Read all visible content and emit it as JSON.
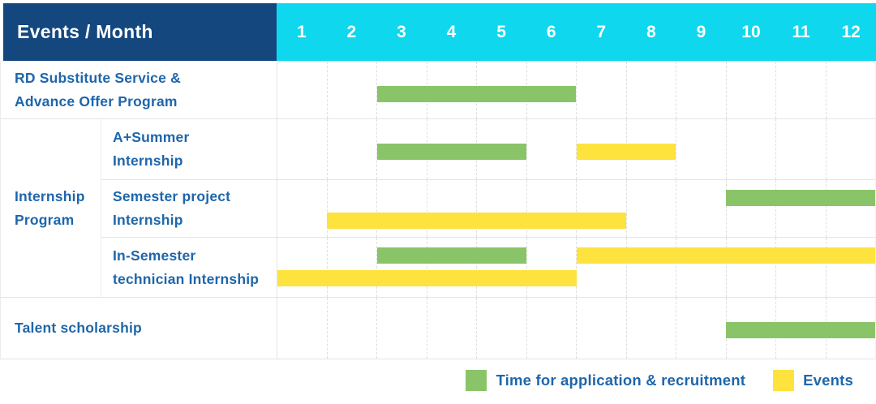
{
  "header": {
    "title": "Events / Month",
    "months": [
      "1",
      "2",
      "3",
      "4",
      "5",
      "6",
      "7",
      "8",
      "9",
      "10",
      "11",
      "12"
    ]
  },
  "group": {
    "label": "Internship Program",
    "label_lines": [
      "Internship",
      "Program"
    ]
  },
  "legend": {
    "items": [
      {
        "label": "Time for application & recruitment",
        "kind": "application"
      },
      {
        "label": "Events",
        "kind": "event"
      }
    ]
  },
  "colors": {
    "header_bg": "#14477E",
    "months_bg": "#0FD7EE",
    "application": "#8AC468",
    "event": "#FEE23E",
    "label_text": "#1E66AB",
    "header_text": "#FFFFFF"
  },
  "chart_data": {
    "type": "table",
    "subtype": "gantt-monthly-schedule",
    "x_label": "Month",
    "x_categories": [
      "1",
      "2",
      "3",
      "4",
      "5",
      "6",
      "7",
      "8",
      "9",
      "10",
      "11",
      "12"
    ],
    "x_range": [
      1,
      12
    ],
    "legend_entries": [
      "Time for application & recruitment",
      "Events"
    ],
    "rows": [
      {
        "group": "",
        "label": "RD Substitute Service & Advance Offer Program",
        "label_lines": [
          "RD Substitute Service &",
          "Advance Offer Program"
        ],
        "bars": [
          {
            "kind": "application",
            "start_month": 3,
            "end_month": 6,
            "lane": "mid"
          }
        ]
      },
      {
        "group": "Internship Program",
        "label": "A+Summer Internship",
        "label_lines": [
          "A+Summer",
          "Internship"
        ],
        "bars": [
          {
            "kind": "application",
            "start_month": 3,
            "end_month": 5,
            "lane": "mid"
          },
          {
            "kind": "event",
            "start_month": 7,
            "end_month": 8,
            "lane": "mid"
          }
        ]
      },
      {
        "group": "Internship Program",
        "label": "Semester project Internship",
        "label_lines": [
          "Semester project",
          "Internship"
        ],
        "bars": [
          {
            "kind": "application",
            "start_month": 10,
            "end_month": 12,
            "lane": "upper"
          },
          {
            "kind": "event",
            "start_month": 2,
            "end_month": 7,
            "lane": "lower"
          }
        ]
      },
      {
        "group": "Internship Program",
        "label": "In-Semester technician Internship",
        "label_lines": [
          "In-Semester",
          "technician Internship"
        ],
        "bars": [
          {
            "kind": "application",
            "start_month": 3,
            "end_month": 5,
            "lane": "upper"
          },
          {
            "kind": "event",
            "start_month": 7,
            "end_month": 12,
            "lane": "upper"
          },
          {
            "kind": "event",
            "start_month": 1,
            "end_month": 6,
            "lane": "lower"
          }
        ]
      },
      {
        "group": "",
        "label": "Talent scholarship",
        "label_lines": [
          "Talent scholarship"
        ],
        "bars": [
          {
            "kind": "application",
            "start_month": 10,
            "end_month": 12,
            "lane": "mid"
          }
        ]
      }
    ]
  }
}
